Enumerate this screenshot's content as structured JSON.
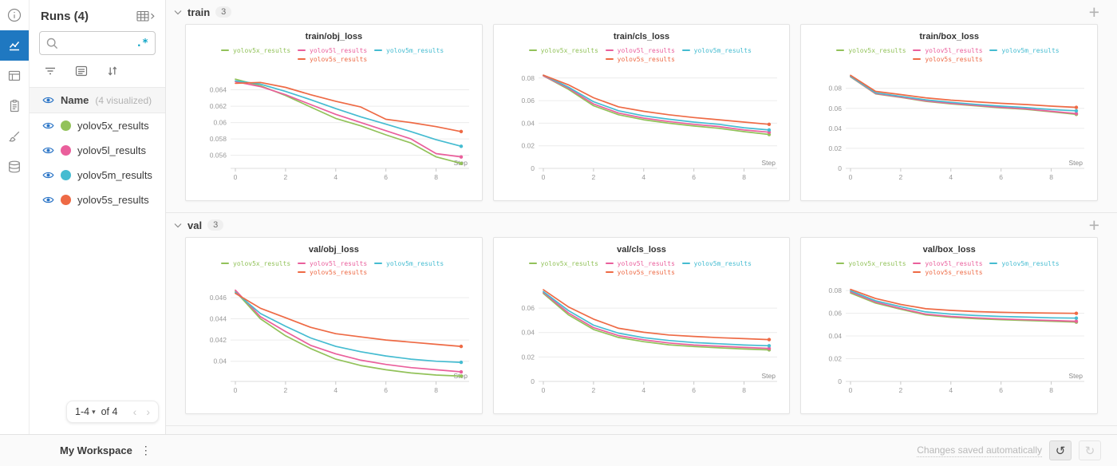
{
  "ui": {
    "add_panel_glyph": "+",
    "caret_glyph": "▾",
    "undo_glyph": "↺",
    "redo_glyph": "↻",
    "kebab_glyph": "⋮"
  },
  "rail": {
    "items": [
      {
        "icon": "info-icon",
        "active": false
      },
      {
        "icon": "line-chart-icon",
        "active": true
      },
      {
        "icon": "panels-icon",
        "active": false
      },
      {
        "icon": "reports-icon",
        "active": false
      },
      {
        "icon": "brush-icon",
        "active": false
      },
      {
        "icon": "database-icon",
        "active": false
      }
    ]
  },
  "sidebar": {
    "title": "Runs (4)",
    "expand_icon": "table-expand-icon",
    "search": {
      "placeholder": "",
      "regex_toggle": ".*"
    },
    "toolbar_icons": [
      "filter-icon",
      "list-view-icon",
      "sort-icon"
    ],
    "columns_header": {
      "name": "Name",
      "visualized": "(4 visualized)"
    },
    "runs": [
      {
        "name": "yolov5x_results",
        "color": "#92c25a"
      },
      {
        "name": "yolov5l_results",
        "color": "#ea5f9c"
      },
      {
        "name": "yolov5m_results",
        "color": "#45bcd1"
      },
      {
        "name": "yolov5s_results",
        "color": "#ee6a45"
      }
    ],
    "pagination": {
      "range": "1-4",
      "of": "of 4",
      "prev_glyph": "‹",
      "next_glyph": "›"
    }
  },
  "sections": [
    {
      "title": "train",
      "count": "3"
    },
    {
      "title": "val",
      "count": "3"
    }
  ],
  "chart_data": [
    {
      "type": "line",
      "title": "train/obj_loss",
      "xlabel": "Step",
      "x": [
        0,
        1,
        2,
        3,
        4,
        5,
        6,
        7,
        8,
        9
      ],
      "xticks": [
        0,
        2,
        4,
        6,
        8
      ],
      "ylim": [
        0.0544,
        0.0662
      ],
      "yticks": [
        0.056,
        0.058,
        0.06,
        0.062,
        0.064
      ],
      "ytick_labels": [
        "0.056",
        "0.058",
        "0.06",
        "0.062",
        "0.064"
      ],
      "series": [
        {
          "name": "yolov5x_results",
          "color": "#92c25a",
          "values": [
            0.0653,
            0.0645,
            0.0633,
            0.0619,
            0.0605,
            0.0596,
            0.0585,
            0.0575,
            0.0558,
            0.055
          ]
        },
        {
          "name": "yolov5l_results",
          "color": "#ea5f9c",
          "values": [
            0.065,
            0.0644,
            0.0634,
            0.0622,
            0.061,
            0.06,
            0.059,
            0.058,
            0.0562,
            0.0558
          ]
        },
        {
          "name": "yolov5m_results",
          "color": "#45bcd1",
          "values": [
            0.0651,
            0.0647,
            0.0638,
            0.0628,
            0.0617,
            0.0607,
            0.0598,
            0.0589,
            0.0579,
            0.0571
          ]
        },
        {
          "name": "yolov5s_results",
          "color": "#ee6a45",
          "values": [
            0.0648,
            0.0649,
            0.0643,
            0.0634,
            0.0626,
            0.0619,
            0.0604,
            0.06,
            0.0595,
            0.0589
          ]
        }
      ]
    },
    {
      "type": "line",
      "title": "train/cls_loss",
      "xlabel": "Step",
      "x": [
        0,
        1,
        2,
        3,
        4,
        5,
        6,
        7,
        8,
        9
      ],
      "xticks": [
        0,
        2,
        4,
        6,
        8
      ],
      "ylim": [
        0,
        0.0855
      ],
      "yticks": [
        0,
        0.02,
        0.04,
        0.06,
        0.08
      ],
      "ytick_labels": [
        "0",
        "0.02",
        "0.04",
        "0.06",
        "0.08"
      ],
      "series": [
        {
          "name": "yolov5x_results",
          "color": "#92c25a",
          "values": [
            0.082,
            0.07,
            0.0555,
            0.0475,
            0.043,
            0.04,
            0.0375,
            0.0355,
            0.0325,
            0.03
          ]
        },
        {
          "name": "yolov5l_results",
          "color": "#ea5f9c",
          "values": [
            0.082,
            0.071,
            0.057,
            0.049,
            0.0445,
            0.0415,
            0.039,
            0.037,
            0.034,
            0.032
          ]
        },
        {
          "name": "yolov5m_results",
          "color": "#45bcd1",
          "values": [
            0.0825,
            0.072,
            0.059,
            0.051,
            0.0465,
            0.0435,
            0.041,
            0.039,
            0.036,
            0.034
          ]
        },
        {
          "name": "yolov5s_results",
          "color": "#ee6a45",
          "values": [
            0.0825,
            0.074,
            0.0625,
            0.0545,
            0.0505,
            0.0475,
            0.045,
            0.043,
            0.041,
            0.039
          ]
        }
      ]
    },
    {
      "type": "line",
      "title": "train/box_loss",
      "xlabel": "Step",
      "x": [
        0,
        1,
        2,
        3,
        4,
        5,
        6,
        7,
        8,
        9
      ],
      "xticks": [
        0,
        2,
        4,
        6,
        8
      ],
      "ylim": [
        0,
        0.0965
      ],
      "yticks": [
        0,
        0.02,
        0.04,
        0.06,
        0.08
      ],
      "ytick_labels": [
        "0",
        "0.02",
        "0.04",
        "0.06",
        "0.08"
      ],
      "series": [
        {
          "name": "yolov5x_results",
          "color": "#92c25a",
          "values": [
            0.0915,
            0.0745,
            0.071,
            0.067,
            0.0645,
            0.0625,
            0.0605,
            0.059,
            0.0565,
            0.054
          ]
        },
        {
          "name": "yolov5l_results",
          "color": "#ea5f9c",
          "values": [
            0.0918,
            0.0748,
            0.0713,
            0.0675,
            0.065,
            0.063,
            0.061,
            0.0595,
            0.057,
            0.0548
          ]
        },
        {
          "name": "yolov5m_results",
          "color": "#45bcd1",
          "values": [
            0.092,
            0.0755,
            0.072,
            0.0685,
            0.066,
            0.064,
            0.0622,
            0.0608,
            0.0588,
            0.0575
          ]
        },
        {
          "name": "yolov5s_results",
          "color": "#ee6a45",
          "values": [
            0.093,
            0.077,
            0.0738,
            0.0705,
            0.0682,
            0.0665,
            0.065,
            0.0638,
            0.0622,
            0.061
          ]
        }
      ]
    },
    {
      "type": "line",
      "title": "val/obj_loss",
      "xlabel": "Step",
      "x": [
        0,
        1,
        2,
        3,
        4,
        5,
        6,
        7,
        8,
        9
      ],
      "xticks": [
        0,
        2,
        4,
        6,
        8
      ],
      "ylim": [
        0.0381,
        0.0472
      ],
      "yticks": [
        0.04,
        0.042,
        0.044,
        0.046
      ],
      "ytick_labels": [
        "0.04",
        "0.042",
        "0.044",
        "0.046"
      ],
      "series": [
        {
          "name": "yolov5x_results",
          "color": "#92c25a",
          "values": [
            0.0466,
            0.044,
            0.0424,
            0.0412,
            0.0402,
            0.0396,
            0.0392,
            0.0389,
            0.0387,
            0.0386
          ]
        },
        {
          "name": "yolov5l_results",
          "color": "#ea5f9c",
          "values": [
            0.0467,
            0.0442,
            0.0428,
            0.0415,
            0.0407,
            0.0401,
            0.0397,
            0.0394,
            0.0392,
            0.039
          ]
        },
        {
          "name": "yolov5m_results",
          "color": "#45bcd1",
          "values": [
            0.0465,
            0.0445,
            0.0433,
            0.0422,
            0.0414,
            0.0409,
            0.0405,
            0.0402,
            0.04,
            0.0399
          ]
        },
        {
          "name": "yolov5s_results",
          "color": "#ee6a45",
          "values": [
            0.0464,
            0.045,
            0.0441,
            0.0432,
            0.0426,
            0.0423,
            0.042,
            0.0418,
            0.0416,
            0.0414
          ]
        }
      ]
    },
    {
      "type": "line",
      "title": "val/cls_loss",
      "xlabel": "Step",
      "x": [
        0,
        1,
        2,
        3,
        4,
        5,
        6,
        7,
        8,
        9
      ],
      "xticks": [
        0,
        2,
        4,
        6,
        8
      ],
      "ylim": [
        0,
        0.079
      ],
      "yticks": [
        0,
        0.02,
        0.04,
        0.06
      ],
      "ytick_labels": [
        "0",
        "0.02",
        "0.04",
        "0.06"
      ],
      "series": [
        {
          "name": "yolov5x_results",
          "color": "#92c25a",
          "values": [
            0.072,
            0.0545,
            0.0425,
            0.036,
            0.0325,
            0.03,
            0.0285,
            0.0275,
            0.0265,
            0.0258
          ]
        },
        {
          "name": "yolov5l_results",
          "color": "#ea5f9c",
          "values": [
            0.0728,
            0.056,
            0.044,
            0.0375,
            0.034,
            0.0315,
            0.0298,
            0.0288,
            0.0278,
            0.027
          ]
        },
        {
          "name": "yolov5m_results",
          "color": "#45bcd1",
          "values": [
            0.0735,
            0.058,
            0.046,
            0.0395,
            0.0358,
            0.0335,
            0.0318,
            0.0308,
            0.0298,
            0.0292
          ]
        },
        {
          "name": "yolov5s_results",
          "color": "#ee6a45",
          "values": [
            0.075,
            0.061,
            0.051,
            0.0435,
            0.0402,
            0.038,
            0.0368,
            0.0358,
            0.035,
            0.0342
          ]
        }
      ]
    },
    {
      "type": "line",
      "title": "val/box_loss",
      "xlabel": "Step",
      "x": [
        0,
        1,
        2,
        3,
        4,
        5,
        6,
        7,
        8,
        9
      ],
      "xticks": [
        0,
        2,
        4,
        6,
        8
      ],
      "ylim": [
        0,
        0.085
      ],
      "yticks": [
        0,
        0.02,
        0.04,
        0.06,
        0.08
      ],
      "ytick_labels": [
        "0",
        "0.02",
        "0.04",
        "0.06",
        "0.08"
      ],
      "series": [
        {
          "name": "yolov5x_results",
          "color": "#92c25a",
          "values": [
            0.0778,
            0.069,
            0.0635,
            0.0585,
            0.0565,
            0.0552,
            0.0543,
            0.0537,
            0.053,
            0.0522
          ]
        },
        {
          "name": "yolov5l_results",
          "color": "#ea5f9c",
          "values": [
            0.0788,
            0.0698,
            0.0642,
            0.0592,
            0.0572,
            0.056,
            0.055,
            0.0543,
            0.0537,
            0.053
          ]
        },
        {
          "name": "yolov5m_results",
          "color": "#45bcd1",
          "values": [
            0.0798,
            0.071,
            0.0658,
            0.0612,
            0.0592,
            0.058,
            0.0572,
            0.0566,
            0.056,
            0.0557
          ]
        },
        {
          "name": "yolov5s_results",
          "color": "#ee6a45",
          "values": [
            0.081,
            0.073,
            0.0678,
            0.064,
            0.0625,
            0.0615,
            0.0608,
            0.0604,
            0.0601,
            0.0599
          ]
        }
      ]
    }
  ],
  "footer": {
    "workspace": "My Workspace",
    "autosave": "Changes saved automatically"
  }
}
